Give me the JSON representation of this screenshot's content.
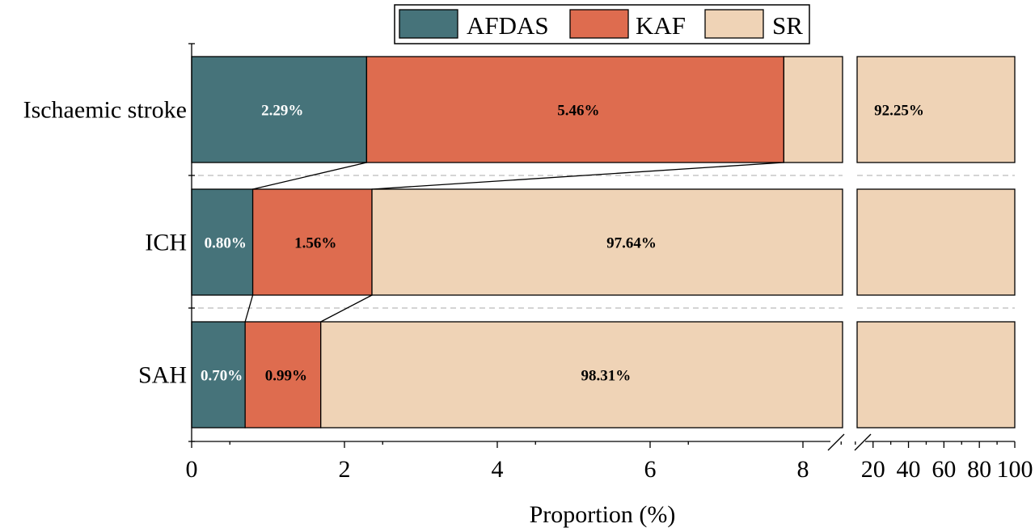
{
  "chart_data": {
    "type": "bar",
    "orientation": "horizontal",
    "stacked": true,
    "title": "",
    "xlabel": "Proportion (%)",
    "ylabel": "",
    "categories": [
      "Ischaemic stroke",
      "ICH",
      "SAH"
    ],
    "series": [
      {
        "name": "AFDAS",
        "color": "#46737A",
        "label_color": "#ffffff",
        "values": [
          2.29,
          0.8,
          0.7
        ],
        "labels": [
          "2.29%",
          "0.80%",
          "0.70%"
        ]
      },
      {
        "name": "KAF",
        "color": "#DE6C4F",
        "label_color": "#000000",
        "values": [
          5.46,
          1.56,
          0.99
        ],
        "labels": [
          "5.46%",
          "1.56%",
          "0.99%"
        ]
      },
      {
        "name": "SR",
        "color": "#EFD3B6",
        "label_color": "#000000",
        "values": [
          92.25,
          97.64,
          98.31
        ],
        "labels": [
          "92.25%",
          "97.64%",
          "98.31%"
        ]
      }
    ],
    "x_axis": {
      "broken": true,
      "segments": [
        {
          "range": [
            0,
            8.6
          ],
          "ticks": [
            0,
            2,
            4,
            6,
            8
          ]
        },
        {
          "range": [
            11,
            100
          ],
          "ticks": [
            20,
            40,
            60,
            80,
            100
          ]
        }
      ]
    },
    "legend": {
      "position": "top",
      "entries": [
        "AFDAS",
        "KAF",
        "SR"
      ]
    },
    "grid": false,
    "connector_lines": true
  }
}
